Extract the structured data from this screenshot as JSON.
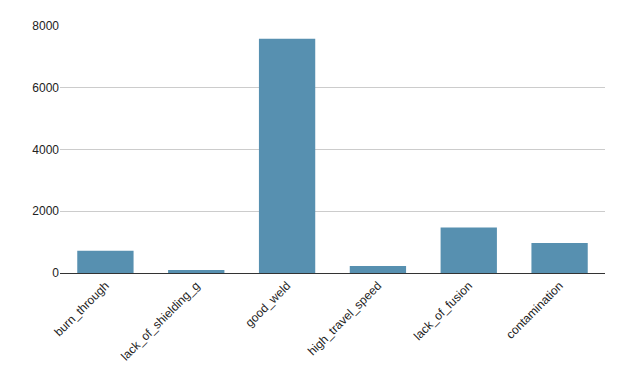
{
  "chart_data": {
    "type": "bar",
    "categories": [
      "burn_through",
      "lack_of_shielding_g",
      "good_weld",
      "high_travel_speed",
      "lack_of_fusion",
      "contamination"
    ],
    "values": [
      720,
      100,
      7590,
      230,
      1470,
      970
    ],
    "color": "#5790b0",
    "ylim": [
      0,
      8000
    ],
    "yticks": [
      0,
      2000,
      4000,
      6000,
      8000
    ],
    "grid": true
  }
}
